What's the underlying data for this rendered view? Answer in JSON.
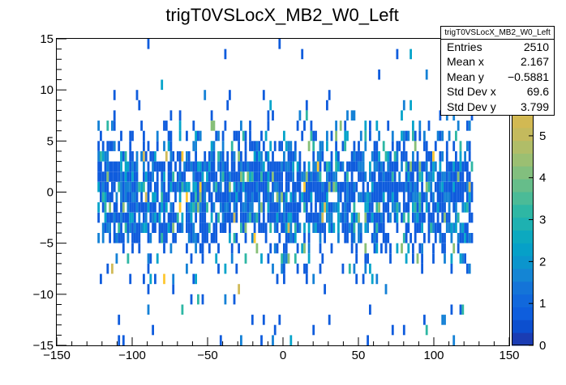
{
  "chart_data": {
    "type": "heatmap",
    "title": "trigT0VSLocX_MB2_W0_Left",
    "xlabel": "",
    "ylabel": "",
    "xlim": [
      -150,
      150
    ],
    "ylim": [
      -15,
      15
    ],
    "x_ticks": [
      "−150",
      "−100",
      "−50",
      "0",
      "50",
      "100",
      "150"
    ],
    "y_ticks": [
      "−15",
      "−10",
      "−5",
      "0",
      "5",
      "10",
      "15"
    ],
    "z_range": [
      0,
      5.5
    ],
    "z_ticks": [
      "0",
      "1",
      "2",
      "3",
      "4",
      "5"
    ],
    "x_bin_width": 1.5,
    "y_bin_width": 1.0,
    "x_data_range": [
      -123,
      125
    ],
    "palette": [
      "#352a87",
      "#0f5cdd",
      "#1481d6",
      "#06a4ca",
      "#2eb7a4",
      "#87bf77",
      "#d1bb59",
      "#fec832",
      "#f9fb0e"
    ],
    "colorbar_colors": [
      "#1a3cb3",
      "#0c4fcf",
      "#0e5edd",
      "#1168dc",
      "#1474d8",
      "#1485d4",
      "#0b95cd",
      "#06a0c8",
      "#0ca9bf",
      "#1eb1b1",
      "#2eb7a4",
      "#4bbb97",
      "#66bd8a",
      "#82bf7e",
      "#9bbf72",
      "#b0bd68",
      "#c4ba5d",
      "#d2b953"
    ],
    "row_densities": [
      {
        "y": -15,
        "density": 0.04
      },
      {
        "y": -14,
        "density": 0.02
      },
      {
        "y": -13,
        "density": 0.06
      },
      {
        "y": -12,
        "density": 0.03
      },
      {
        "y": -11,
        "density": 0.05
      },
      {
        "y": -10,
        "density": 0.03
      },
      {
        "y": -9,
        "density": 0.1
      },
      {
        "y": -8,
        "density": 0.12
      },
      {
        "y": -7,
        "density": 0.2
      },
      {
        "y": -6,
        "density": 0.3
      },
      {
        "y": -5,
        "density": 0.5
      },
      {
        "y": -4,
        "density": 0.65
      },
      {
        "y": -3,
        "density": 0.75
      },
      {
        "y": -2,
        "density": 0.82
      },
      {
        "y": -1,
        "density": 0.85
      },
      {
        "y": 0,
        "density": 0.85
      },
      {
        "y": 1,
        "density": 0.82
      },
      {
        "y": 2,
        "density": 0.75
      },
      {
        "y": 3,
        "density": 0.55
      },
      {
        "y": 4,
        "density": 0.4
      },
      {
        "y": 5,
        "density": 0.3
      },
      {
        "y": 6,
        "density": 0.2
      },
      {
        "y": 7,
        "density": 0.1
      },
      {
        "y": 8,
        "density": 0.04
      },
      {
        "y": 9,
        "density": 0.03
      },
      {
        "y": 10,
        "density": 0.02
      },
      {
        "y": 11,
        "density": 0.02
      },
      {
        "y": 12,
        "density": 0.0
      },
      {
        "y": 13,
        "density": 0.01
      },
      {
        "y": 14,
        "density": 0.01
      }
    ]
  },
  "stats": {
    "name": "trigT0VSLocX_MB2_W0_Left",
    "rows": [
      {
        "label": "Entries",
        "value": "2510"
      },
      {
        "label": "Mean x",
        "value": "2.167"
      },
      {
        "label": "Mean y",
        "value": "−0.5881"
      },
      {
        "label": "Std Dev x",
        "value": "69.6"
      },
      {
        "label": "Std Dev y",
        "value": "3.799"
      }
    ]
  }
}
